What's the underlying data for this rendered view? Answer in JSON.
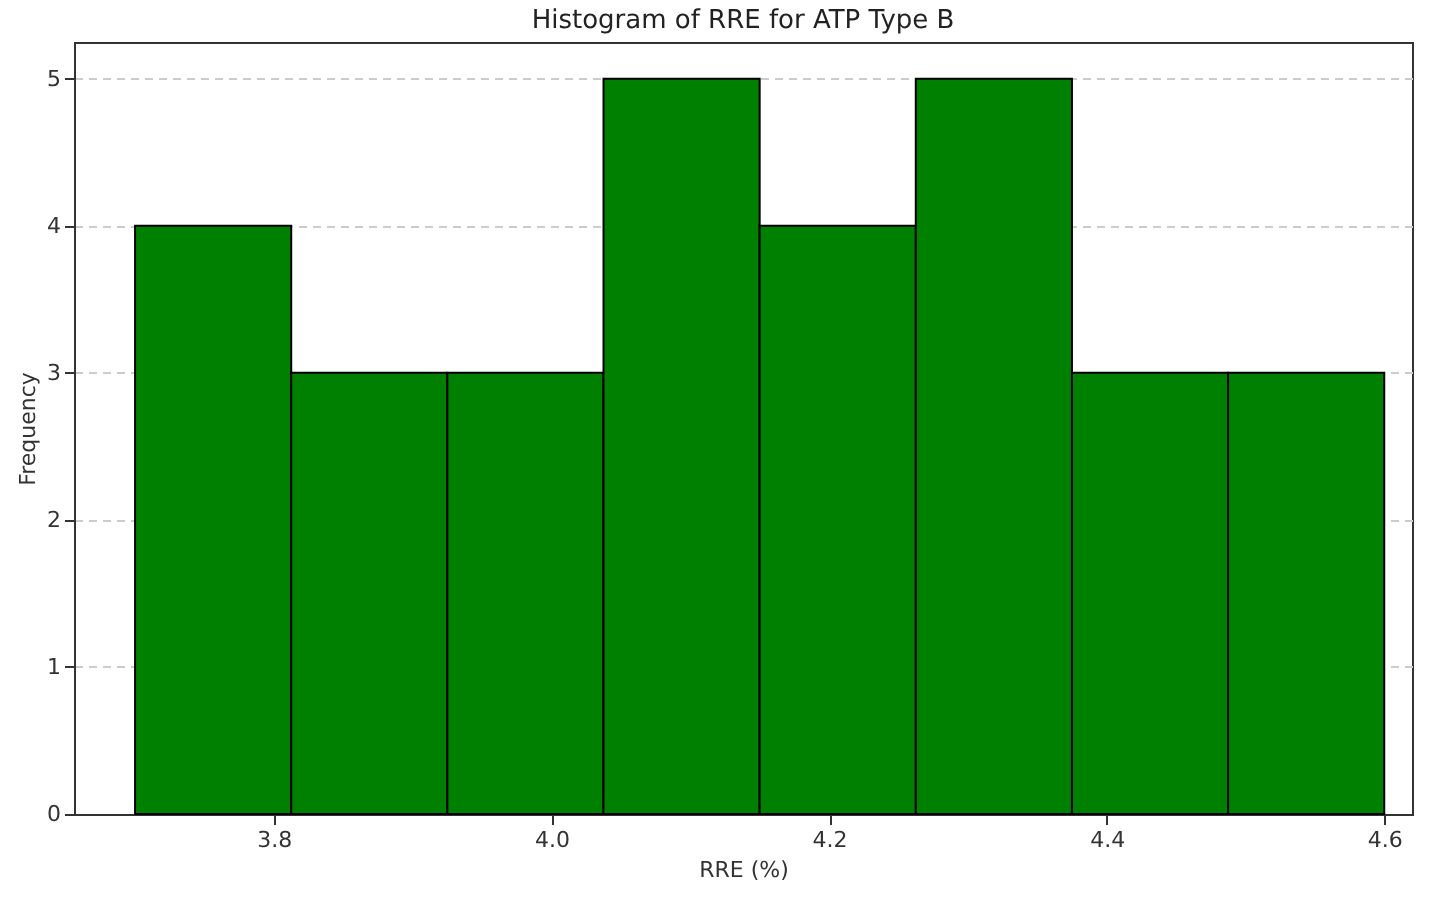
{
  "chart_data": {
    "type": "histogram",
    "title": "Histogram of RRE for ATP Type B",
    "xlabel": "RRE (%)",
    "ylabel": "Frequency",
    "bins": [
      3.7,
      3.8125,
      3.925,
      4.0375,
      4.15,
      4.2625,
      4.375,
      4.4875,
      4.6
    ],
    "values": [
      4,
      3,
      3,
      5,
      4,
      5,
      3,
      3
    ],
    "color": "#008000",
    "xlim": [
      3.656,
      4.62
    ],
    "xticks": [
      {
        "value": 3.8,
        "label": "3.8"
      },
      {
        "value": 4.0,
        "label": "4.0"
      },
      {
        "value": 4.2,
        "label": "4.2"
      },
      {
        "value": 4.4,
        "label": "4.4"
      },
      {
        "value": 4.6,
        "label": "4.6"
      }
    ],
    "ylim": [
      0,
      5.25
    ],
    "yticks": [
      0,
      1,
      2,
      3,
      4,
      5
    ],
    "grid": "y"
  }
}
